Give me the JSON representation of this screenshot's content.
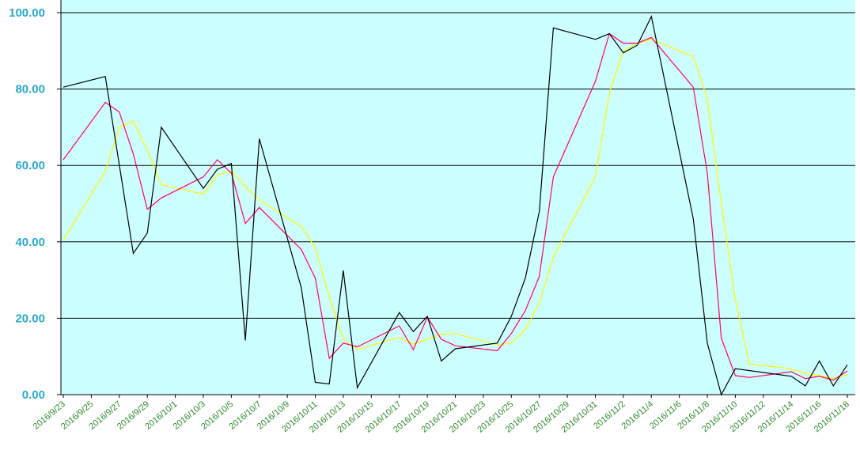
{
  "chart_data": {
    "type": "line",
    "title": "",
    "xlabel": "",
    "ylabel": "",
    "ylim": [
      0,
      100
    ],
    "y_ticks": [
      "0.00",
      "20.00",
      "40.00",
      "60.00",
      "80.00",
      "100.00"
    ],
    "grid": "horizontal",
    "legend": "none",
    "x_ticks": [
      "2016/9/23",
      "2016/9/25",
      "2016/9/27",
      "2016/9/29",
      "2016/10/1",
      "2016/10/3",
      "2016/10/5",
      "2016/10/7",
      "2016/10/9",
      "2016/10/11",
      "2016/10/13",
      "2016/10/15",
      "2016/10/17",
      "2016/10/19",
      "2016/10/21",
      "2016/10/23",
      "2016/10/25",
      "2016/10/27",
      "2016/10/29",
      "2016/10/31",
      "2016/11/2",
      "2016/11/4",
      "2016/11/6",
      "2016/11/8",
      "2016/11/10",
      "2016/11/12",
      "2016/11/14",
      "2016/11/16",
      "2016/11/18"
    ],
    "colors": {
      "plot_background": "#ccffff",
      "axis_text_y": "#2aa7c9",
      "axis_text_x": "#2e8b2e",
      "gridline": "#000000"
    },
    "series": [
      {
        "color": "#000000",
        "points": [
          [
            "2016/9/23",
            80.5
          ],
          [
            "2016/9/26",
            83.3
          ],
          [
            "2016/9/28",
            37.0
          ],
          [
            "2016/9/29",
            42.3
          ],
          [
            "2016/9/30",
            70.0
          ],
          [
            "2016/10/3",
            54.0
          ],
          [
            "2016/10/4",
            59.0
          ],
          [
            "2016/10/5",
            60.5
          ],
          [
            "2016/10/6",
            14.2
          ],
          [
            "2016/10/7",
            67.0
          ],
          [
            "2016/10/10",
            28.0
          ],
          [
            "2016/10/11",
            3.2
          ],
          [
            "2016/10/12",
            2.8
          ],
          [
            "2016/10/13",
            32.5
          ],
          [
            "2016/10/14",
            1.8
          ],
          [
            "2016/10/17",
            21.5
          ],
          [
            "2016/10/18",
            16.5
          ],
          [
            "2016/10/19",
            20.5
          ],
          [
            "2016/10/20",
            8.8
          ],
          [
            "2016/10/21",
            12.0
          ],
          [
            "2016/10/24",
            13.5
          ],
          [
            "2016/10/25",
            20.5
          ],
          [
            "2016/10/26",
            30.5
          ],
          [
            "2016/10/27",
            48.0
          ],
          [
            "2016/10/28",
            96.0
          ],
          [
            "2016/10/31",
            93.0
          ],
          [
            "2016/11/1",
            94.5
          ],
          [
            "2016/11/2",
            89.5
          ],
          [
            "2016/11/3",
            91.5
          ],
          [
            "2016/11/4",
            99.0
          ],
          [
            "2016/11/7",
            46.0
          ],
          [
            "2016/11/8",
            13.5
          ],
          [
            "2016/11/9",
            0.0
          ],
          [
            "2016/11/10",
            6.8
          ],
          [
            "2016/11/14",
            4.8
          ],
          [
            "2016/11/15",
            2.3
          ],
          [
            "2016/11/16",
            8.8
          ],
          [
            "2016/11/17",
            2.3
          ],
          [
            "2016/11/18",
            7.8
          ]
        ]
      },
      {
        "color": "#ff0066",
        "points": [
          [
            "2016/9/23",
            61.5
          ],
          [
            "2016/9/26",
            76.5
          ],
          [
            "2016/9/27",
            74.0
          ],
          [
            "2016/9/28",
            63.0
          ],
          [
            "2016/9/29",
            48.5
          ],
          [
            "2016/9/30",
            51.5
          ],
          [
            "2016/10/3",
            57.0
          ],
          [
            "2016/10/4",
            61.5
          ],
          [
            "2016/10/5",
            58.0
          ],
          [
            "2016/10/6",
            44.8
          ],
          [
            "2016/10/7",
            49.0
          ],
          [
            "2016/10/10",
            38.0
          ],
          [
            "2016/10/11",
            30.5
          ],
          [
            "2016/10/12",
            9.5
          ],
          [
            "2016/10/13",
            13.5
          ],
          [
            "2016/10/14",
            12.5
          ],
          [
            "2016/10/17",
            18.0
          ],
          [
            "2016/10/18",
            11.8
          ],
          [
            "2016/10/19",
            20.3
          ],
          [
            "2016/10/20",
            14.5
          ],
          [
            "2016/10/21",
            12.8
          ],
          [
            "2016/10/24",
            11.5
          ],
          [
            "2016/10/25",
            16.0
          ],
          [
            "2016/10/26",
            22.0
          ],
          [
            "2016/10/27",
            31.0
          ],
          [
            "2016/10/28",
            57.0
          ],
          [
            "2016/10/31",
            82.0
          ],
          [
            "2016/11/1",
            94.5
          ],
          [
            "2016/11/2",
            92.0
          ],
          [
            "2016/11/3",
            92.0
          ],
          [
            "2016/11/4",
            93.5
          ],
          [
            "2016/11/7",
            80.5
          ],
          [
            "2016/11/8",
            58.0
          ],
          [
            "2016/11/9",
            14.8
          ],
          [
            "2016/11/10",
            5.0
          ],
          [
            "2016/11/11",
            4.5
          ],
          [
            "2016/11/14",
            6.0
          ],
          [
            "2016/11/15",
            4.2
          ],
          [
            "2016/11/16",
            4.8
          ],
          [
            "2016/11/17",
            3.8
          ],
          [
            "2016/11/18",
            6.2
          ]
        ]
      },
      {
        "color": "#ffff00",
        "points": [
          [
            "2016/9/23",
            40.5
          ],
          [
            "2016/9/26",
            58.5
          ],
          [
            "2016/9/27",
            70.0
          ],
          [
            "2016/9/28",
            71.5
          ],
          [
            "2016/9/29",
            64.0
          ],
          [
            "2016/9/30",
            55.0
          ],
          [
            "2016/10/3",
            52.5
          ],
          [
            "2016/10/4",
            57.5
          ],
          [
            "2016/10/5",
            58.5
          ],
          [
            "2016/10/6",
            54.5
          ],
          [
            "2016/10/7",
            51.0
          ],
          [
            "2016/10/10",
            44.0
          ],
          [
            "2016/10/11",
            38.5
          ],
          [
            "2016/10/12",
            25.5
          ],
          [
            "2016/10/13",
            14.5
          ],
          [
            "2016/10/14",
            11.8
          ],
          [
            "2016/10/17",
            15.0
          ],
          [
            "2016/10/18",
            13.2
          ],
          [
            "2016/10/19",
            14.5
          ],
          [
            "2016/10/20",
            15.8
          ],
          [
            "2016/10/21",
            16.0
          ],
          [
            "2016/10/24",
            13.0
          ],
          [
            "2016/10/25",
            13.5
          ],
          [
            "2016/10/26",
            17.0
          ],
          [
            "2016/10/27",
            24.0
          ],
          [
            "2016/10/28",
            36.0
          ],
          [
            "2016/10/31",
            57.0
          ],
          [
            "2016/11/1",
            79.0
          ],
          [
            "2016/11/2",
            90.0
          ],
          [
            "2016/11/3",
            92.0
          ],
          [
            "2016/11/4",
            93.0
          ],
          [
            "2016/11/7",
            88.5
          ],
          [
            "2016/11/8",
            77.5
          ],
          [
            "2016/11/9",
            50.0
          ],
          [
            "2016/11/10",
            25.0
          ],
          [
            "2016/11/11",
            8.0
          ],
          [
            "2016/11/14",
            6.8
          ],
          [
            "2016/11/15",
            5.5
          ],
          [
            "2016/11/16",
            5.0
          ],
          [
            "2016/11/17",
            4.2
          ],
          [
            "2016/11/18",
            5.3
          ]
        ]
      }
    ]
  }
}
